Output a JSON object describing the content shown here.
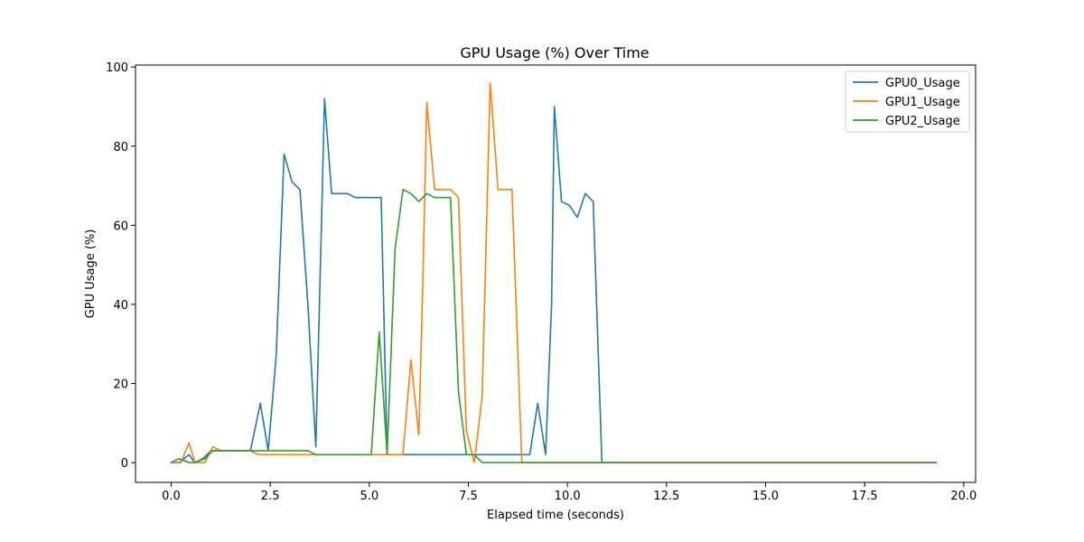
{
  "chart_data": {
    "type": "line",
    "title": "GPU Usage (%) Over Time",
    "xlabel": "Elapsed time (seconds)",
    "ylabel": "GPU Usage (%)",
    "xlim": [
      -0.9,
      20.3
    ],
    "ylim": [
      -5,
      100.5
    ],
    "xticks": [
      0.0,
      2.5,
      5.0,
      7.5,
      10.0,
      12.5,
      15.0,
      17.5,
      20.0
    ],
    "xtick_labels": [
      "0.0",
      "2.5",
      "5.0",
      "7.5",
      "10.0",
      "12.5",
      "15.0",
      "17.5",
      "20.0"
    ],
    "yticks": [
      0,
      20,
      40,
      60,
      80,
      100
    ],
    "ytick_labels": [
      "0",
      "20",
      "40",
      "60",
      "80",
      "100"
    ],
    "grid": false,
    "legend_position": "top-right",
    "series": [
      {
        "name": "GPU0_Usage",
        "color": "#1f77b4",
        "x": [
          0,
          0.2,
          0.45,
          0.6,
          0.8,
          1.0,
          1.2,
          1.6,
          2.0,
          2.25,
          2.45,
          2.65,
          2.85,
          3.05,
          3.25,
          3.45,
          3.65,
          3.8,
          3.87,
          4.05,
          4.25,
          4.45,
          4.65,
          5.0,
          5.3,
          5.45,
          5.65,
          6.0,
          9.05,
          9.25,
          9.45,
          9.6,
          9.67,
          9.85,
          10.05,
          10.25,
          10.45,
          10.65,
          10.87,
          11.0,
          19.3
        ],
        "y": [
          0,
          0,
          2,
          0,
          1,
          3,
          3,
          3,
          3,
          15,
          3,
          27,
          78,
          71,
          69,
          40,
          4,
          63,
          92,
          68,
          68,
          68,
          67,
          67,
          67,
          2,
          2,
          2,
          2,
          15,
          2,
          40,
          90,
          66,
          65,
          62,
          68,
          66,
          0,
          0,
          0
        ]
      },
      {
        "name": "GPU1_Usage",
        "color": "#ff7f0e",
        "x": [
          0,
          0.25,
          0.45,
          0.6,
          0.85,
          1.05,
          1.25,
          2.0,
          2.2,
          3.0,
          5.0,
          5.85,
          6.05,
          6.25,
          6.35,
          6.45,
          6.65,
          7.05,
          7.25,
          7.45,
          7.65,
          7.85,
          8.05,
          8.25,
          8.6,
          8.85,
          9.05,
          19.3
        ],
        "y": [
          0,
          0,
          5,
          0,
          0,
          4,
          3,
          3,
          2,
          2,
          2,
          2,
          26,
          7,
          45,
          91,
          69,
          69,
          67,
          8,
          0,
          17,
          96,
          69,
          69,
          0,
          0,
          0
        ]
      },
      {
        "name": "GPU2_Usage",
        "color": "#2ca02c",
        "x": [
          0,
          0.2,
          0.45,
          0.6,
          0.85,
          1.05,
          1.25,
          2.0,
          3.45,
          3.65,
          5.05,
          5.25,
          5.45,
          5.65,
          5.85,
          6.05,
          6.25,
          6.45,
          6.65,
          7.05,
          7.25,
          7.45,
          7.65,
          7.85,
          8.05,
          19.3
        ],
        "y": [
          0,
          1,
          0,
          0,
          1,
          3,
          3,
          3,
          3,
          2,
          2,
          33,
          2,
          54,
          69,
          68,
          66,
          68,
          67,
          67,
          18,
          2,
          2,
          0,
          0,
          0
        ]
      }
    ]
  }
}
